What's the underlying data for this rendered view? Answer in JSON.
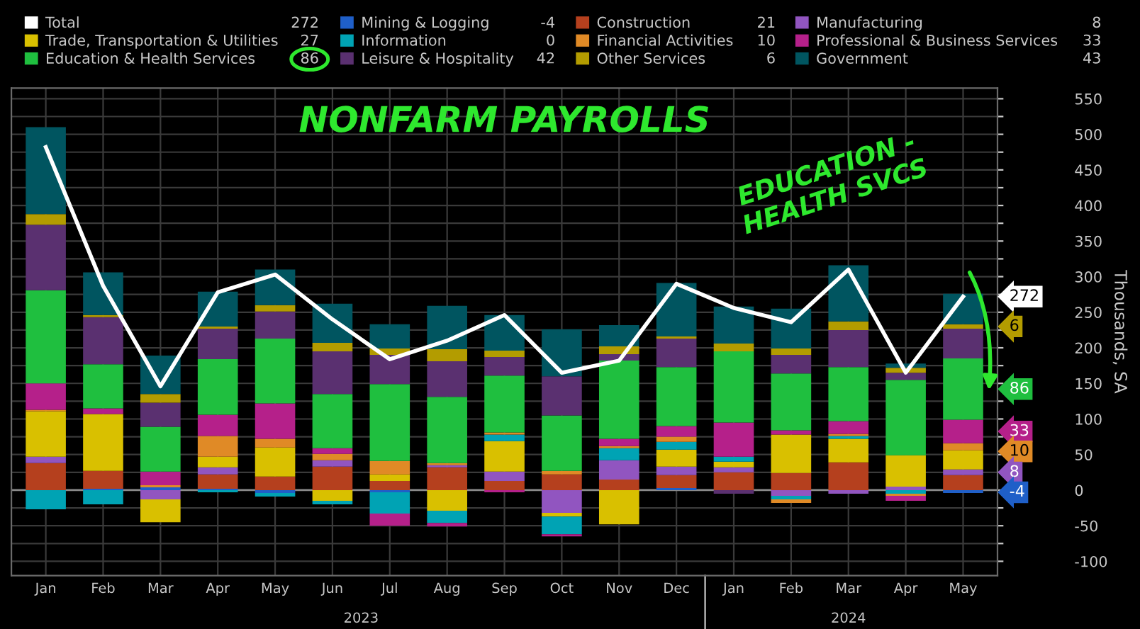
{
  "chart_data": {
    "type": "bar",
    "stacked": true,
    "title": "NONFARM PAYROLLS",
    "ylabel": "Thousands, SA",
    "categories": [
      "Jan",
      "Feb",
      "Mar",
      "Apr",
      "May",
      "Jun",
      "Jul",
      "Aug",
      "Sep",
      "Oct",
      "Nov",
      "Dec",
      "Jan",
      "Feb",
      "Mar",
      "Apr",
      "May"
    ],
    "ylim": [
      -120,
      565
    ],
    "yticks": [
      -100,
      {
        "value": -75,
        "label": null
      },
      -50,
      {
        "value": -25,
        "label": null
      },
      0,
      {
        "value": 25,
        "label": null
      },
      50,
      {
        "value": 75,
        "label": null
      },
      100,
      {
        "value": 125,
        "label": null
      },
      150,
      {
        "value": 175,
        "label": null
      },
      200,
      {
        "value": 225,
        "label": null
      },
      250,
      {
        "value": 275,
        "label": null
      },
      300,
      {
        "value": 325,
        "label": null
      },
      350,
      {
        "value": 375,
        "label": null
      },
      400,
      {
        "value": 425,
        "label": null
      },
      450,
      {
        "value": 475,
        "label": null
      },
      500,
      {
        "value": 525,
        "label": null
      },
      550
    ],
    "grid": true,
    "legend": "top",
    "annotations": [
      "2023",
      "2024",
      "EDUCATION -\nHEALTH SVCS",
      "272",
      "-4",
      "21",
      "8",
      "27",
      "0",
      "10",
      "33",
      "86",
      "42",
      "6",
      "43",
      "272",
      "6",
      "86",
      "33",
      "10",
      "8",
      "-4"
    ],
    "series": [
      {
        "name": "Total",
        "type": "line",
        "color": "#ffffff",
        "values": [
          482,
          287,
          146,
          278,
          303,
          240,
          184,
          210,
          246,
          165,
          182,
          290,
          256,
          236,
          310,
          165,
          272
        ]
      },
      {
        "name": "Mining & Logging",
        "color": "#1f5fc8",
        "values": [
          0,
          2,
          4,
          2,
          -4,
          0,
          -3,
          0,
          0,
          0,
          0,
          3,
          0,
          0,
          0,
          0,
          -4
        ]
      },
      {
        "name": "Construction",
        "color": "#b5401e",
        "values": [
          38,
          25,
          0,
          20,
          19,
          33,
          13,
          32,
          13,
          22,
          15,
          18,
          25,
          24,
          39,
          0,
          21
        ]
      },
      {
        "name": "Manufacturing",
        "color": "#9155c0",
        "values": [
          9,
          0,
          -13,
          10,
          0,
          9,
          0,
          3,
          13,
          -32,
          27,
          12,
          7,
          -8,
          -5,
          5,
          8
        ]
      },
      {
        "name": "Trade, Transportation & Utilities",
        "color": "#d9c000",
        "values": [
          64,
          80,
          -32,
          15,
          41,
          -15,
          9,
          -29,
          43,
          -5,
          -48,
          24,
          8,
          54,
          33,
          44,
          27
        ]
      },
      {
        "name": "Information",
        "color": "#00a3b4",
        "values": [
          -27,
          -20,
          0,
          -3,
          -5,
          -5,
          -30,
          -17,
          9,
          -25,
          17,
          11,
          7,
          -5,
          4,
          -5,
          0
        ]
      },
      {
        "name": "Financial Activities",
        "color": "#e08a26",
        "values": [
          2,
          0,
          3,
          29,
          12,
          9,
          19,
          3,
          3,
          5,
          3,
          7,
          0,
          -5,
          3,
          -3,
          10
        ]
      },
      {
        "name": "Professional & Business Services",
        "color": "#b5208a",
        "values": [
          37,
          8,
          19,
          30,
          50,
          8,
          -17,
          -5,
          -3,
          -3,
          10,
          15,
          48,
          6,
          18,
          -7,
          33
        ]
      },
      {
        "name": "Education & Health Services",
        "color": "#1fbf3f",
        "values": [
          131,
          62,
          63,
          78,
          91,
          76,
          108,
          93,
          80,
          78,
          110,
          83,
          100,
          80,
          76,
          106,
          86
        ]
      },
      {
        "name": "Leisure & Hospitality",
        "color": "#5a3070",
        "values": [
          92,
          66,
          34,
          43,
          38,
          60,
          41,
          50,
          26,
          55,
          9,
          40,
          -5,
          26,
          52,
          10,
          42
        ]
      },
      {
        "name": "Other Services",
        "color": "#b39c00",
        "values": [
          15,
          3,
          12,
          3,
          9,
          12,
          9,
          17,
          9,
          0,
          11,
          3,
          11,
          9,
          12,
          7,
          6
        ]
      },
      {
        "name": "Government",
        "color": "#005560",
        "values": [
          122,
          60,
          54,
          49,
          50,
          55,
          34,
          61,
          50,
          66,
          30,
          75,
          52,
          56,
          79,
          6,
          43
        ]
      }
    ]
  }
}
